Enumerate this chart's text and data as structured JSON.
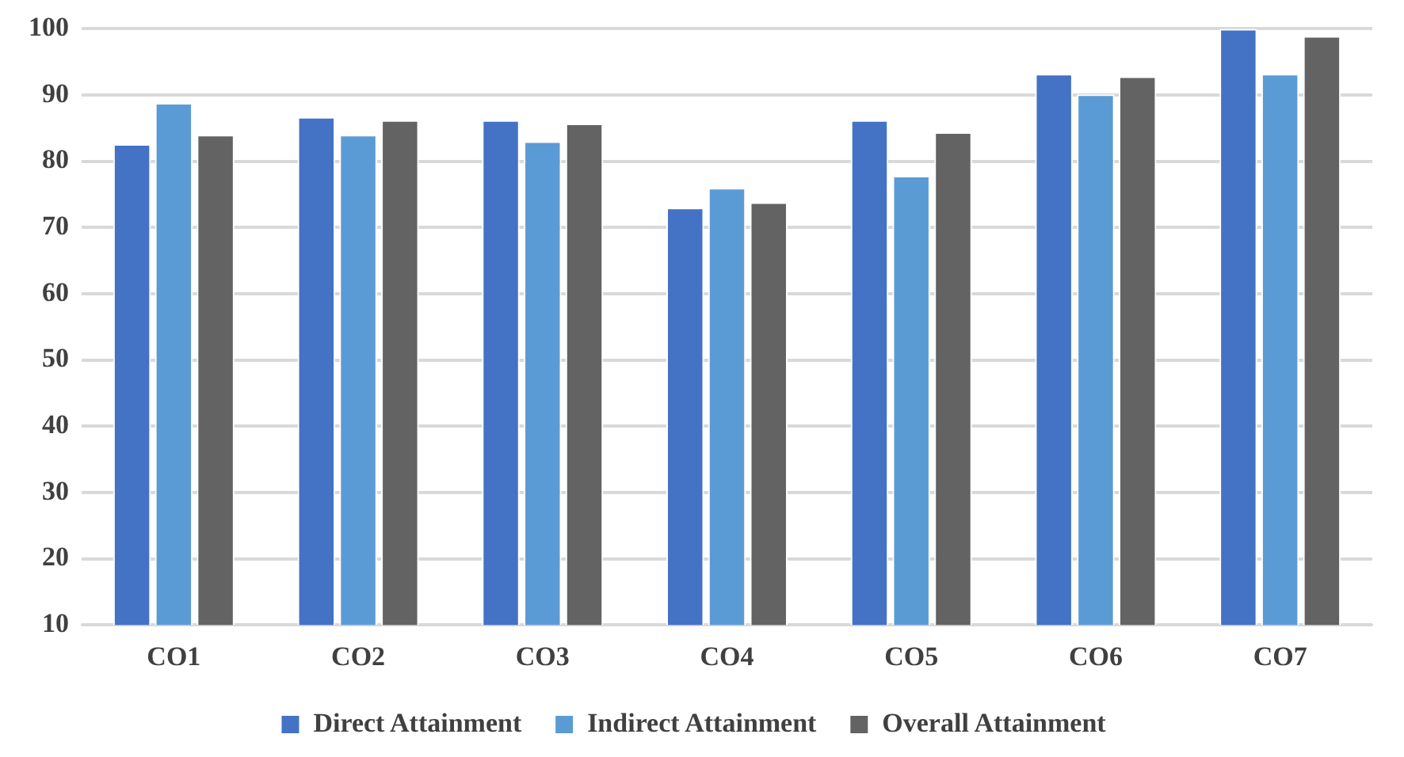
{
  "chart_data": {
    "type": "bar",
    "categories": [
      "CO1",
      "CO2",
      "CO3",
      "CO4",
      "CO5",
      "CO6",
      "CO7"
    ],
    "series": [
      {
        "name": "Direct Attainment",
        "color": "#4472c4",
        "values": [
          82.6,
          86.7,
          86.2,
          73.0,
          86.2,
          93.2,
          100
        ]
      },
      {
        "name": "Indirect Attainment",
        "color": "#5b9bd5",
        "values": [
          88.8,
          84.0,
          83.0,
          76.0,
          77.8,
          90.1,
          93.2
        ]
      },
      {
        "name": "Overall Attainment",
        "color": "#636363",
        "values": [
          84.0,
          86.2,
          85.7,
          73.8,
          84.4,
          92.8,
          98.9
        ]
      }
    ],
    "ylim": [
      10,
      100
    ],
    "yticks": [
      10,
      20,
      30,
      40,
      50,
      60,
      70,
      80,
      90,
      100
    ],
    "grid": "y",
    "legend": "bottom"
  }
}
